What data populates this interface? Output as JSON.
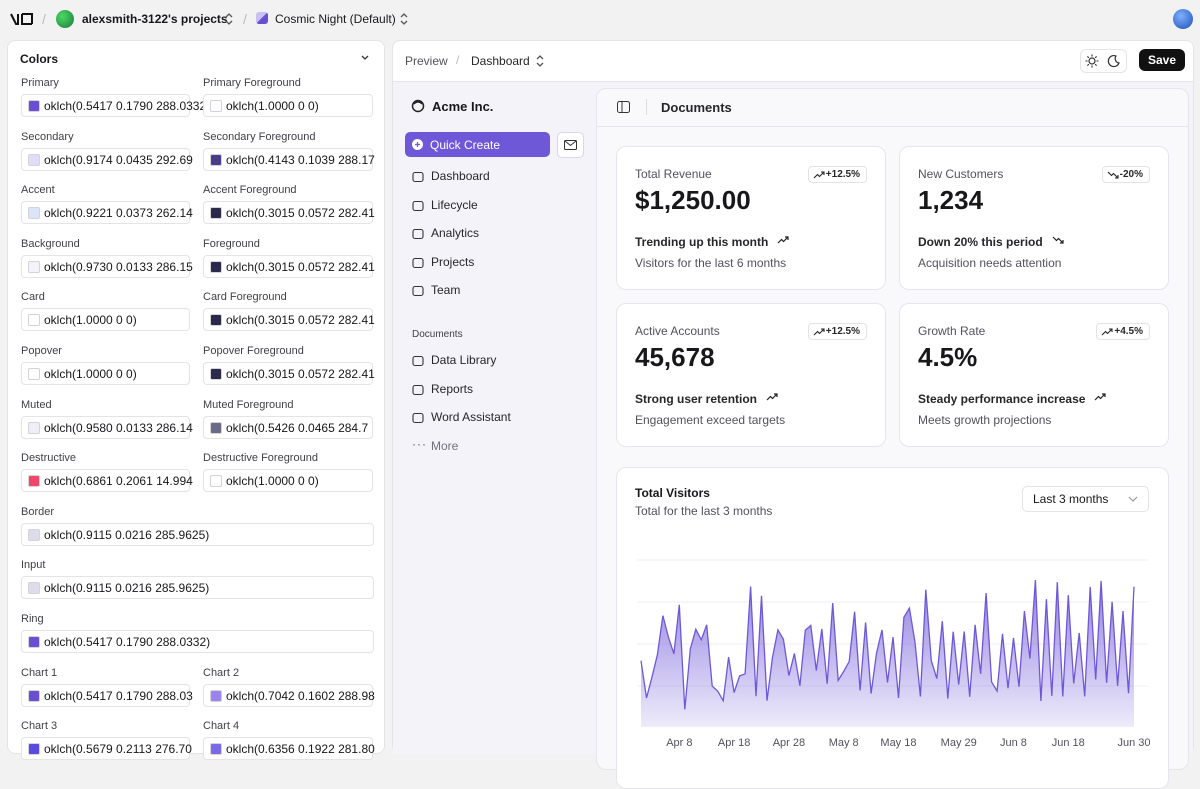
{
  "topbar": {
    "project": "alexsmith-3122's projects",
    "theme": "Cosmic Night (Default)"
  },
  "colors_panel": {
    "title": "Colors",
    "rows": [
      [
        {
          "label": "Primary",
          "value": "oklch(0.5417 0.1790 288.0332)",
          "color": "#6a4fd2"
        },
        {
          "label": "Primary Foreground",
          "value": "oklch(1.0000 0 0)",
          "color": "#ffffff"
        }
      ],
      [
        {
          "label": "Secondary",
          "value": "oklch(0.9174 0.0435 292.69",
          "color": "#e2dcf7"
        },
        {
          "label": "Secondary Foreground",
          "value": "oklch(0.4143 0.1039 288.17",
          "color": "#4a3c8c"
        }
      ],
      [
        {
          "label": "Accent",
          "value": "oklch(0.9221 0.0373 262.14",
          "color": "#dbe4f8"
        },
        {
          "label": "Accent Foreground",
          "value": "oklch(0.3015 0.0572 282.41",
          "color": "#2b2a4c"
        }
      ],
      [
        {
          "label": "Background",
          "value": "oklch(0.9730 0.0133 286.15",
          "color": "#f4f3fa"
        },
        {
          "label": "Foreground",
          "value": "oklch(0.3015 0.0572 282.41",
          "color": "#2b2a4c"
        }
      ],
      [
        {
          "label": "Card",
          "value": "oklch(1.0000 0 0)",
          "color": "#ffffff"
        },
        {
          "label": "Card Foreground",
          "value": "oklch(0.3015 0.0572 282.41",
          "color": "#2b2a4c"
        }
      ],
      [
        {
          "label": "Popover",
          "value": "oklch(1.0000 0 0)",
          "color": "#ffffff"
        },
        {
          "label": "Popover Foreground",
          "value": "oklch(0.3015 0.0572 282.41",
          "color": "#2b2a4c"
        }
      ],
      [
        {
          "label": "Muted",
          "value": "oklch(0.9580 0.0133 286.14",
          "color": "#efeef6"
        },
        {
          "label": "Muted Foreground",
          "value": "oklch(0.5426 0.0465 284.7",
          "color": "#6b6a86"
        }
      ],
      [
        {
          "label": "Destructive",
          "value": "oklch(0.6861 0.2061 14.994",
          "color": "#f0476a"
        },
        {
          "label": "Destructive Foreground",
          "value": "oklch(1.0000 0 0)",
          "color": "#ffffff"
        }
      ],
      [
        {
          "label": "Border",
          "value": "oklch(0.9115 0.0216 285.9625)",
          "color": "#dddcea"
        }
      ],
      [
        {
          "label": "Input",
          "value": "oklch(0.9115 0.0216 285.9625)",
          "color": "#dddcea"
        }
      ],
      [
        {
          "label": "Ring",
          "value": "oklch(0.5417 0.1790 288.0332)",
          "color": "#6a4fd2"
        }
      ],
      [
        {
          "label": "Chart 1",
          "value": "oklch(0.5417 0.1790 288.03",
          "color": "#6a4fd2"
        },
        {
          "label": "Chart 2",
          "value": "oklch(0.7042 0.1602 288.98",
          "color": "#9a83ee"
        }
      ],
      [
        {
          "label": "Chart 3",
          "value": "oklch(0.5679 0.2113 276.70",
          "color": "#5a4be0"
        },
        {
          "label": "Chart 4",
          "value": "oklch(0.6356 0.1922 281.80",
          "color": "#7a6ae8"
        }
      ]
    ]
  },
  "preview": {
    "breadcrumb": [
      "Preview",
      "Dashboard"
    ],
    "save": "Save",
    "sidebar": {
      "brand": "Acme Inc.",
      "quick_create": "Quick Create",
      "nav": [
        "Dashboard",
        "Lifecycle",
        "Analytics",
        "Projects",
        "Team"
      ],
      "section": "Documents",
      "documents": [
        "Data Library",
        "Reports",
        "Word Assistant"
      ],
      "more": "More"
    },
    "main": {
      "title": "Documents",
      "cards": [
        {
          "label": "Total Revenue",
          "badge": "+12.5%",
          "value": "$1,250.00",
          "headline": "Trending up this month",
          "note": "Visitors for the last 6 months",
          "trend": "up"
        },
        {
          "label": "New Customers",
          "badge": "-20%",
          "value": "1,234",
          "headline": "Down 20% this period",
          "note": "Acquisition needs attention",
          "trend": "down"
        },
        {
          "label": "Active Accounts",
          "badge": "+12.5%",
          "value": "45,678",
          "headline": "Strong user retention",
          "note": "Engagement exceed targets",
          "trend": "up"
        },
        {
          "label": "Growth Rate",
          "badge": "+4.5%",
          "value": "4.5%",
          "headline": "Steady performance increase",
          "note": "Meets growth projections",
          "trend": "up"
        }
      ],
      "chart": {
        "type": "area",
        "title": "Total Visitors",
        "subtitle": "Total for the last 3 months",
        "range": "Last 3 months",
        "color": "#6f58d8",
        "categories": [
          null,
          null,
          null,
          null,
          null,
          null,
          null,
          "Apr 8",
          null,
          null,
          null,
          null,
          null,
          null,
          null,
          null,
          null,
          "Apr 18",
          null,
          null,
          null,
          null,
          null,
          null,
          null,
          null,
          null,
          "Apr 28",
          null,
          null,
          null,
          null,
          null,
          null,
          null,
          null,
          null,
          "May 8",
          null,
          null,
          null,
          null,
          null,
          null,
          null,
          null,
          null,
          "May 18",
          null,
          null,
          null,
          null,
          null,
          null,
          null,
          null,
          null,
          null,
          "May 29",
          null,
          null,
          null,
          null,
          null,
          null,
          null,
          null,
          null,
          "Jun 8",
          null,
          null,
          null,
          null,
          null,
          null,
          null,
          null,
          null,
          "Jun 18",
          null,
          null,
          null,
          null,
          null,
          null,
          null,
          null,
          null,
          null,
          null,
          "Jun 30"
        ],
        "values": [
          222,
          97,
          167,
          242,
          373,
          301,
          245,
          409,
          59,
          261,
          327,
          292,
          342,
          137,
          120,
          88,
          234,
          115,
          171,
          178,
          470,
          103,
          439,
          88,
          233,
          325,
          294,
          172,
          246,
          138,
          324,
          340,
          189,
          328,
          145,
          415,
          156,
          186,
          219,
          386,
          122,
          350,
          112,
          247,
          325,
          149,
          301,
          97,
          367,
          398,
          286,
          102,
          460,
          222,
          162,
          354,
          95,
          319,
          142,
          320,
          101,
          342,
          178,
          448,
          151,
          120,
          312,
          130,
          298,
          135,
          388,
          229,
          492,
          87,
          428,
          104,
          485,
          102,
          441,
          146,
          315,
          102,
          469,
          159,
          489,
          148,
          419,
          138,
          388,
          113,
          470
        ]
      }
    }
  }
}
